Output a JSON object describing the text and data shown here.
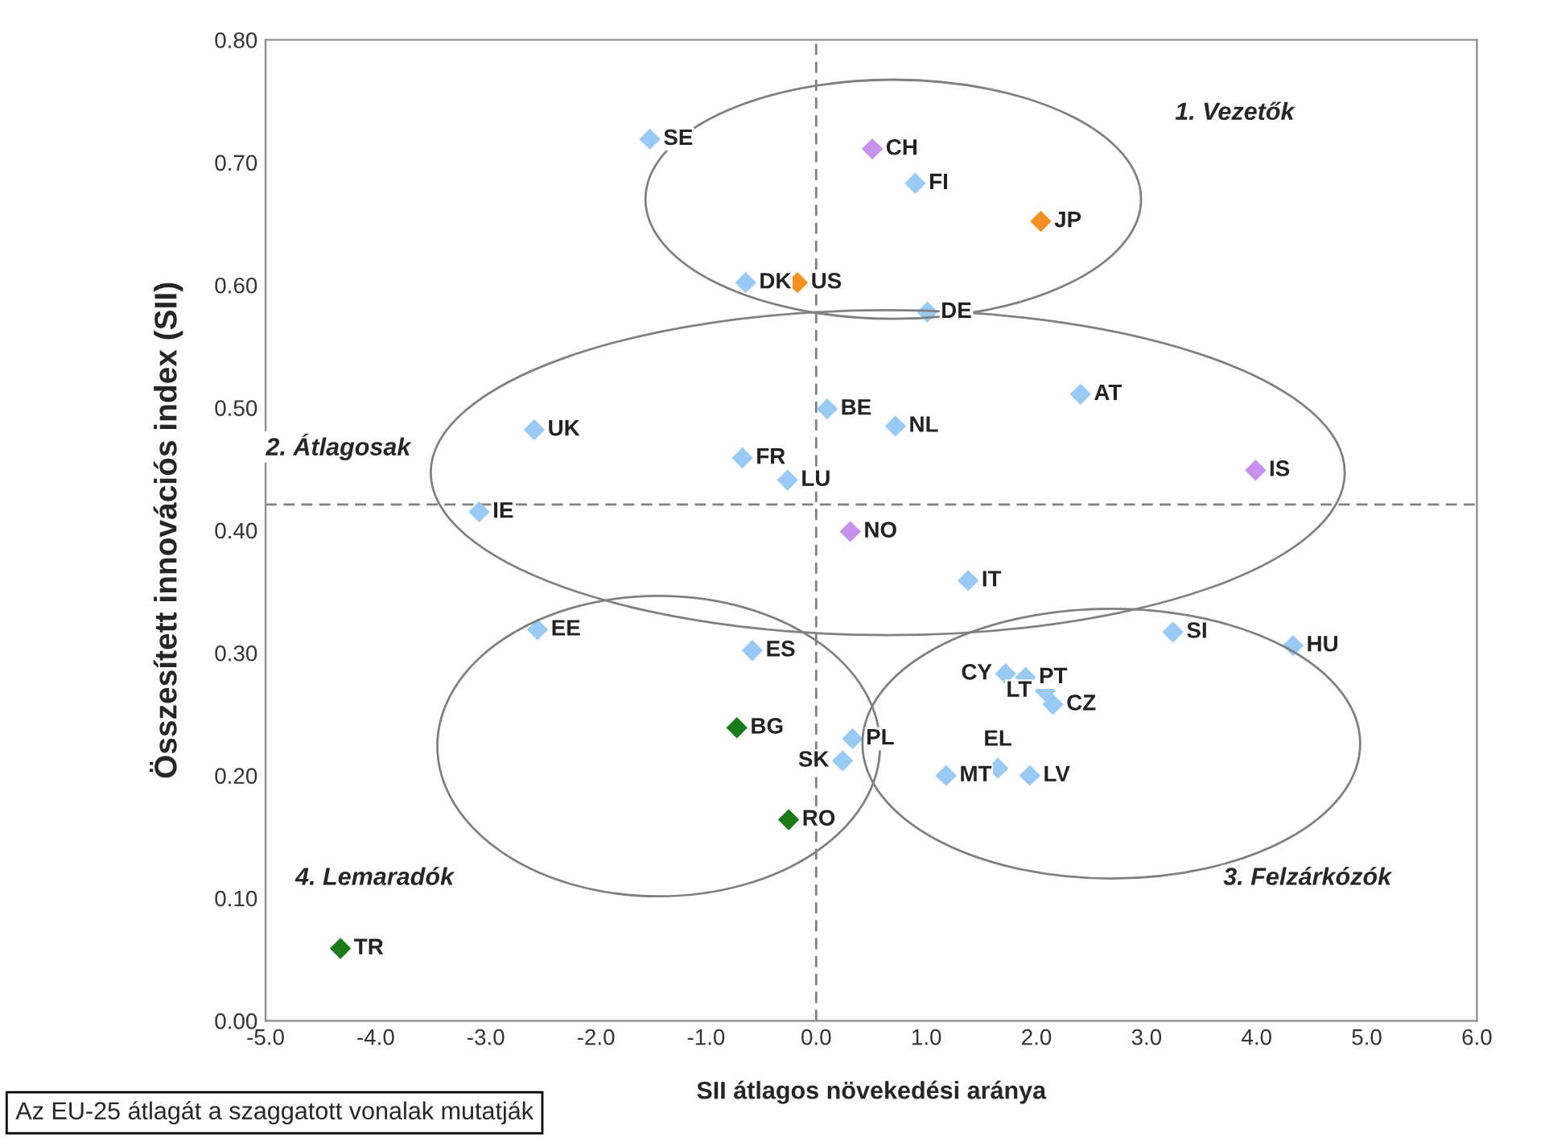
{
  "chart_data": {
    "type": "scatter",
    "xlabel": "SII átlagos növekedési aránya",
    "ylabel": "Összesített innovációs index (SII)",
    "marker": "diamond",
    "grid": false,
    "xlim": [
      -5.0,
      6.0
    ],
    "ylim": [
      0.0,
      0.8
    ],
    "xticks": [
      {
        "value": -5,
        "label": "-5.0"
      },
      {
        "value": -4,
        "label": "-4.0"
      },
      {
        "value": -3,
        "label": "-3.0"
      },
      {
        "value": -2,
        "label": "-2.0"
      },
      {
        "value": -1,
        "label": "-1.0"
      },
      {
        "value": 0,
        "label": "0.0"
      },
      {
        "value": 1,
        "label": "1.0"
      },
      {
        "value": 2,
        "label": "2.0"
      },
      {
        "value": 3,
        "label": "3.0"
      },
      {
        "value": 4,
        "label": "4.0"
      },
      {
        "value": 5,
        "label": "5.0"
      },
      {
        "value": 6,
        "label": "6.0"
      }
    ],
    "yticks": [
      {
        "value": 0,
        "label": "0.00"
      },
      {
        "value": 0.1,
        "label": "0.10"
      },
      {
        "value": 0.2,
        "label": "0.20"
      },
      {
        "value": 0.3,
        "label": "0.30"
      },
      {
        "value": 0.4,
        "label": "0.40"
      },
      {
        "value": 0.5,
        "label": "0.50"
      },
      {
        "value": 0.6,
        "label": "0.60"
      },
      {
        "value": 0.7,
        "label": "0.70"
      },
      {
        "value": 0.8,
        "label": "0.80"
      }
    ],
    "ref_lines": [
      {
        "axis": "x",
        "value": 0.0,
        "color": "#808080",
        "line_style": "dashed"
      },
      {
        "axis": "y",
        "value": 0.421,
        "color": "#808080",
        "line_style": "dashed"
      }
    ],
    "series": [
      {
        "color": "#99c9f5",
        "x": [
          -1.51,
          -0.64,
          0.9,
          1.01,
          -2.56,
          -0.67,
          -0.26,
          -3.06,
          0.1,
          0.72,
          2.4,
          1.38,
          -2.53,
          -0.58,
          0.33,
          0.24,
          3.24,
          4.33,
          1.72,
          1.9,
          2.08,
          2.15,
          1.18,
          1.65,
          1.94
        ],
        "values": [
          0.719,
          0.602,
          0.683,
          0.578,
          0.482,
          0.459,
          0.441,
          0.415,
          0.499,
          0.485,
          0.511,
          0.359,
          0.319,
          0.302,
          0.23,
          0.212,
          0.317,
          0.306,
          0.283,
          0.28,
          0.269,
          0.258,
          0.2,
          0.206,
          0.2
        ]
      },
      {
        "color": "#f39021",
        "x": [
          -0.17,
          2.04
        ],
        "values": [
          0.602,
          0.652
        ]
      },
      {
        "color": "#c890ee",
        "x": [
          0.51,
          3.99,
          0.31
        ],
        "values": [
          0.711,
          0.449,
          0.399
        ]
      },
      {
        "color": "#1a7a1a",
        "x": [
          -0.72,
          -0.25,
          -4.32
        ],
        "values": [
          0.239,
          0.164,
          0.059
        ]
      }
    ],
    "annotations": [
      {
        "text": "SE",
        "x": -1.51,
        "y": 0.719
      },
      {
        "text": "DK",
        "x": -0.64,
        "y": 0.602
      },
      {
        "text": "US",
        "x": -0.17,
        "y": 0.602
      },
      {
        "text": "CH",
        "x": 0.51,
        "y": 0.711
      },
      {
        "text": "FI",
        "x": 0.9,
        "y": 0.683
      },
      {
        "text": "JP",
        "x": 2.04,
        "y": 0.652
      },
      {
        "text": "DE",
        "x": 1.01,
        "y": 0.578
      },
      {
        "text": "UK",
        "x": -2.56,
        "y": 0.482
      },
      {
        "text": "FR",
        "x": -0.67,
        "y": 0.459
      },
      {
        "text": "LU",
        "x": -0.26,
        "y": 0.441
      },
      {
        "text": "IE",
        "x": -3.06,
        "y": 0.415
      },
      {
        "text": "BE",
        "x": 0.1,
        "y": 0.499
      },
      {
        "text": "NL",
        "x": 0.72,
        "y": 0.485
      },
      {
        "text": "AT",
        "x": 2.4,
        "y": 0.511
      },
      {
        "text": "IS",
        "x": 3.99,
        "y": 0.449
      },
      {
        "text": "NO",
        "x": 0.31,
        "y": 0.399
      },
      {
        "text": "IT",
        "x": 1.38,
        "y": 0.359
      },
      {
        "text": "EE",
        "x": -2.53,
        "y": 0.319
      },
      {
        "text": "ES",
        "x": -0.58,
        "y": 0.302
      },
      {
        "text": "BG",
        "x": -0.72,
        "y": 0.239
      },
      {
        "text": "RO",
        "x": -0.25,
        "y": 0.164
      },
      {
        "text": "TR",
        "x": -4.32,
        "y": 0.059
      },
      {
        "text": "PL",
        "x": 0.33,
        "y": 0.23
      },
      {
        "text": "SK",
        "x": 0.24,
        "y": 0.212
      },
      {
        "text": "SI",
        "x": 3.24,
        "y": 0.317
      },
      {
        "text": "HU",
        "x": 4.33,
        "y": 0.306
      },
      {
        "text": "CY",
        "x": 1.72,
        "y": 0.283
      },
      {
        "text": "PT",
        "x": 1.9,
        "y": 0.28
      },
      {
        "text": "LT",
        "x": 2.08,
        "y": 0.269
      },
      {
        "text": "CZ",
        "x": 2.15,
        "y": 0.258
      },
      {
        "text": "MT",
        "x": 1.18,
        "y": 0.2
      },
      {
        "text": "EL",
        "x": 1.65,
        "y": 0.206
      },
      {
        "text": "LV",
        "x": 1.94,
        "y": 0.2
      },
      "1. Vezetők",
      "2. Átlagosak",
      "3. Felzárkózók",
      "4. Lemaradók",
      "Az EU-25 átlagát a szaggatott vonalak mutatják"
    ]
  }
}
